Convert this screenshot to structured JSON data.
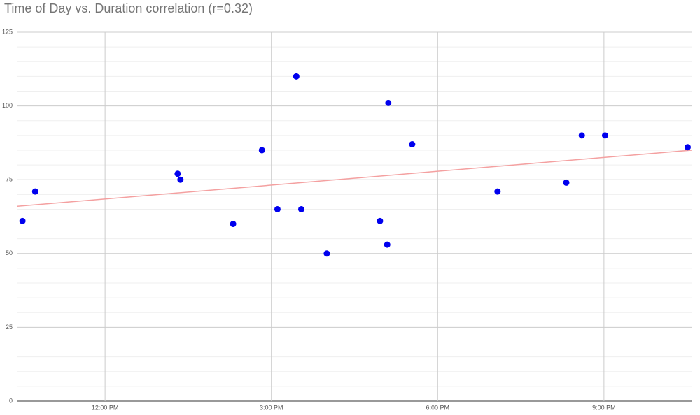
{
  "chart_data": {
    "type": "scatter",
    "title": "Time of Day vs. Duration correlation (r=0.32)",
    "x": [
      10.51,
      10.74,
      13.31,
      13.36,
      14.31,
      14.83,
      15.11,
      15.45,
      15.54,
      16.0,
      16.96,
      17.09,
      17.11,
      17.54,
      19.08,
      20.32,
      20.6,
      21.02,
      22.51
    ],
    "values": [
      61,
      71,
      77,
      75,
      60,
      85,
      65,
      110,
      65,
      50,
      61,
      53,
      101,
      87,
      71,
      74,
      90,
      90,
      86
    ],
    "color": "#0000ee",
    "trendline": {
      "x": [
        10.42,
        22.58
      ],
      "values": [
        66,
        85
      ],
      "color": "#f4a0a0"
    },
    "xlim": [
      10.42,
      22.58
    ],
    "xticks": [
      {
        "value": 12,
        "label": "12:00 PM"
      },
      {
        "value": 15,
        "label": "3:00 PM"
      },
      {
        "value": 18,
        "label": "6:00 PM"
      },
      {
        "value": 21,
        "label": "9:00 PM"
      }
    ],
    "ylim": [
      0,
      125
    ],
    "yticks": [
      0,
      25,
      50,
      75,
      100,
      125
    ],
    "y_minor_ticks": [
      5,
      10,
      15,
      20,
      30,
      35,
      40,
      45,
      55,
      60,
      65,
      70,
      80,
      85,
      90,
      95,
      105,
      110,
      115,
      120
    ],
    "grid": true
  }
}
